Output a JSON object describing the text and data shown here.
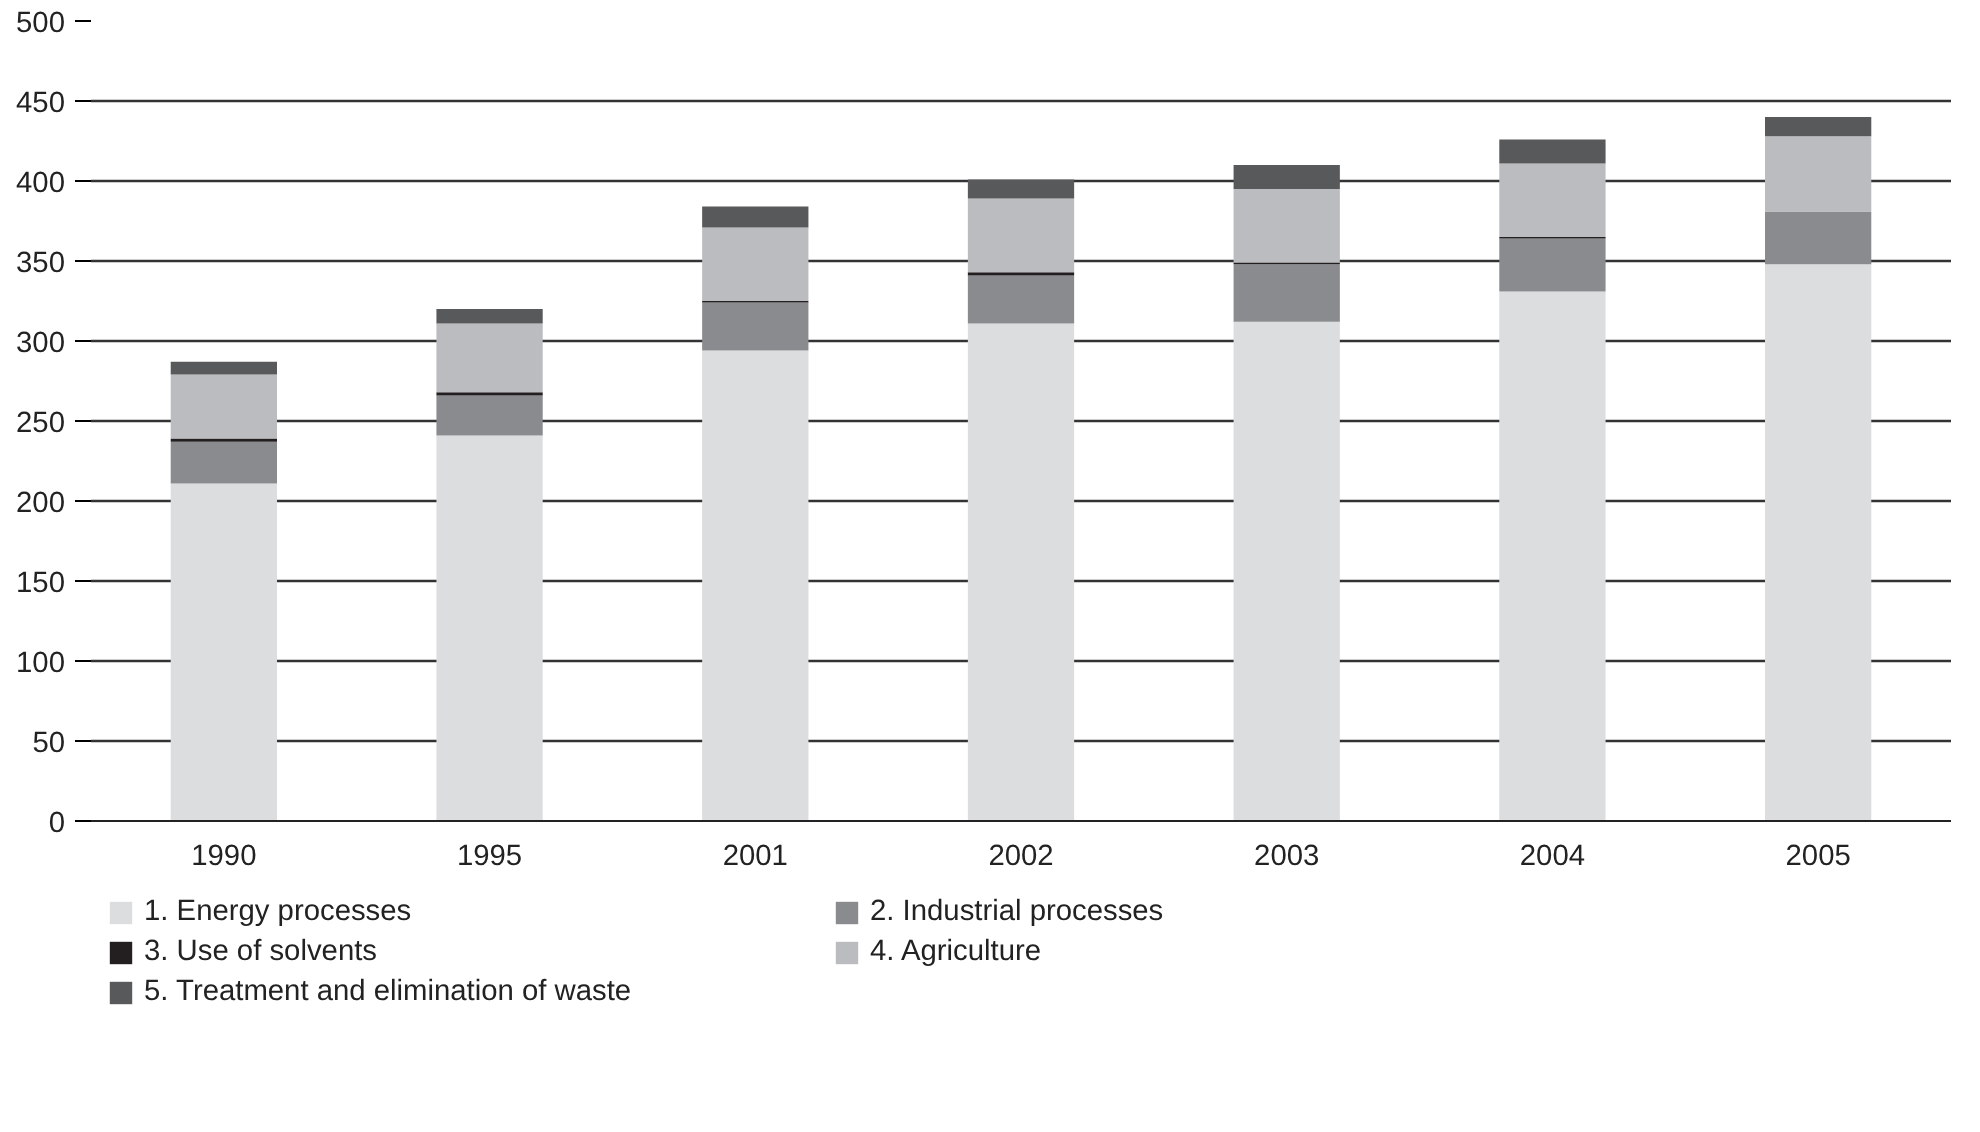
{
  "chart_data": {
    "type": "bar",
    "stacked": true,
    "categories": [
      "1990",
      "1995",
      "2001",
      "2002",
      "2003",
      "2004",
      "2005"
    ],
    "series": [
      {
        "name": "1. Energy processes",
        "color": "#dcdddf",
        "values": [
          211,
          241,
          294,
          311,
          312,
          331,
          348
        ]
      },
      {
        "name": "2. Industrial processes",
        "color": "#8a8b8e",
        "values": [
          26,
          25,
          30,
          30,
          36,
          33,
          33
        ]
      },
      {
        "name": "3. Use of solvents",
        "color": "#231f20",
        "values": [
          2,
          2,
          1,
          2,
          1,
          1,
          0
        ]
      },
      {
        "name": "4. Agriculture",
        "color": "#bbbcbf",
        "values": [
          40,
          43,
          46,
          46,
          46,
          46,
          47
        ]
      },
      {
        "name": "5. Treatment and elimination of waste",
        "color": "#58595b",
        "values": [
          8,
          9,
          13,
          12,
          15,
          15,
          12
        ]
      }
    ],
    "ylim": [
      0,
      500
    ],
    "yticks": [
      0,
      50,
      100,
      150,
      200,
      250,
      300,
      350,
      400,
      450,
      500
    ],
    "grid": "y",
    "legend": "bottom"
  }
}
